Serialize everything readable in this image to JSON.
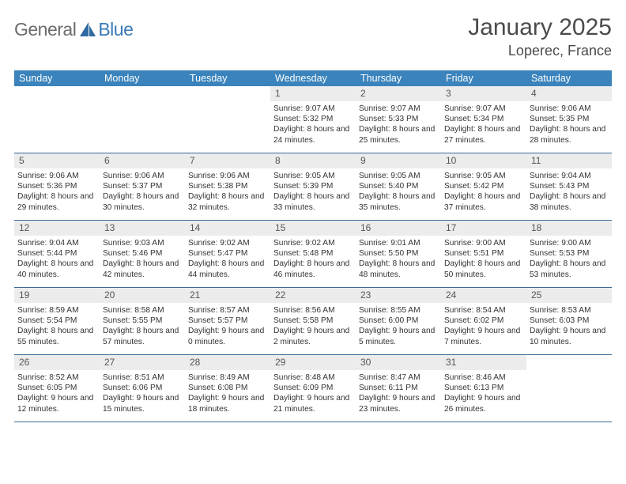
{
  "logo": {
    "text1": "General",
    "text2": "Blue"
  },
  "title": "January 2025",
  "location": "Loperec, France",
  "colors": {
    "header_bg": "#3a83bc",
    "header_text": "#ffffff",
    "daynum_bg": "#ececec",
    "week_border": "#3a6a95",
    "logo_gray": "#6c6c6c",
    "logo_blue": "#3a7ab5",
    "body_text": "#333333"
  },
  "dow": [
    "Sunday",
    "Monday",
    "Tuesday",
    "Wednesday",
    "Thursday",
    "Friday",
    "Saturday"
  ],
  "weeks": [
    [
      {
        "n": "",
        "sr": "",
        "ss": "",
        "dl": ""
      },
      {
        "n": "",
        "sr": "",
        "ss": "",
        "dl": ""
      },
      {
        "n": "",
        "sr": "",
        "ss": "",
        "dl": ""
      },
      {
        "n": "1",
        "sr": "9:07 AM",
        "ss": "5:32 PM",
        "dl": "8 hours and 24 minutes."
      },
      {
        "n": "2",
        "sr": "9:07 AM",
        "ss": "5:33 PM",
        "dl": "8 hours and 25 minutes."
      },
      {
        "n": "3",
        "sr": "9:07 AM",
        "ss": "5:34 PM",
        "dl": "8 hours and 27 minutes."
      },
      {
        "n": "4",
        "sr": "9:06 AM",
        "ss": "5:35 PM",
        "dl": "8 hours and 28 minutes."
      }
    ],
    [
      {
        "n": "5",
        "sr": "9:06 AM",
        "ss": "5:36 PM",
        "dl": "8 hours and 29 minutes."
      },
      {
        "n": "6",
        "sr": "9:06 AM",
        "ss": "5:37 PM",
        "dl": "8 hours and 30 minutes."
      },
      {
        "n": "7",
        "sr": "9:06 AM",
        "ss": "5:38 PM",
        "dl": "8 hours and 32 minutes."
      },
      {
        "n": "8",
        "sr": "9:05 AM",
        "ss": "5:39 PM",
        "dl": "8 hours and 33 minutes."
      },
      {
        "n": "9",
        "sr": "9:05 AM",
        "ss": "5:40 PM",
        "dl": "8 hours and 35 minutes."
      },
      {
        "n": "10",
        "sr": "9:05 AM",
        "ss": "5:42 PM",
        "dl": "8 hours and 37 minutes."
      },
      {
        "n": "11",
        "sr": "9:04 AM",
        "ss": "5:43 PM",
        "dl": "8 hours and 38 minutes."
      }
    ],
    [
      {
        "n": "12",
        "sr": "9:04 AM",
        "ss": "5:44 PM",
        "dl": "8 hours and 40 minutes."
      },
      {
        "n": "13",
        "sr": "9:03 AM",
        "ss": "5:46 PM",
        "dl": "8 hours and 42 minutes."
      },
      {
        "n": "14",
        "sr": "9:02 AM",
        "ss": "5:47 PM",
        "dl": "8 hours and 44 minutes."
      },
      {
        "n": "15",
        "sr": "9:02 AM",
        "ss": "5:48 PM",
        "dl": "8 hours and 46 minutes."
      },
      {
        "n": "16",
        "sr": "9:01 AM",
        "ss": "5:50 PM",
        "dl": "8 hours and 48 minutes."
      },
      {
        "n": "17",
        "sr": "9:00 AM",
        "ss": "5:51 PM",
        "dl": "8 hours and 50 minutes."
      },
      {
        "n": "18",
        "sr": "9:00 AM",
        "ss": "5:53 PM",
        "dl": "8 hours and 53 minutes."
      }
    ],
    [
      {
        "n": "19",
        "sr": "8:59 AM",
        "ss": "5:54 PM",
        "dl": "8 hours and 55 minutes."
      },
      {
        "n": "20",
        "sr": "8:58 AM",
        "ss": "5:55 PM",
        "dl": "8 hours and 57 minutes."
      },
      {
        "n": "21",
        "sr": "8:57 AM",
        "ss": "5:57 PM",
        "dl": "9 hours and 0 minutes."
      },
      {
        "n": "22",
        "sr": "8:56 AM",
        "ss": "5:58 PM",
        "dl": "9 hours and 2 minutes."
      },
      {
        "n": "23",
        "sr": "8:55 AM",
        "ss": "6:00 PM",
        "dl": "9 hours and 5 minutes."
      },
      {
        "n": "24",
        "sr": "8:54 AM",
        "ss": "6:02 PM",
        "dl": "9 hours and 7 minutes."
      },
      {
        "n": "25",
        "sr": "8:53 AM",
        "ss": "6:03 PM",
        "dl": "9 hours and 10 minutes."
      }
    ],
    [
      {
        "n": "26",
        "sr": "8:52 AM",
        "ss": "6:05 PM",
        "dl": "9 hours and 12 minutes."
      },
      {
        "n": "27",
        "sr": "8:51 AM",
        "ss": "6:06 PM",
        "dl": "9 hours and 15 minutes."
      },
      {
        "n": "28",
        "sr": "8:49 AM",
        "ss": "6:08 PM",
        "dl": "9 hours and 18 minutes."
      },
      {
        "n": "29",
        "sr": "8:48 AM",
        "ss": "6:09 PM",
        "dl": "9 hours and 21 minutes."
      },
      {
        "n": "30",
        "sr": "8:47 AM",
        "ss": "6:11 PM",
        "dl": "9 hours and 23 minutes."
      },
      {
        "n": "31",
        "sr": "8:46 AM",
        "ss": "6:13 PM",
        "dl": "9 hours and 26 minutes."
      },
      {
        "n": "",
        "sr": "",
        "ss": "",
        "dl": ""
      }
    ]
  ],
  "labels": {
    "sunrise": "Sunrise:",
    "sunset": "Sunset:",
    "daylight": "Daylight:"
  }
}
